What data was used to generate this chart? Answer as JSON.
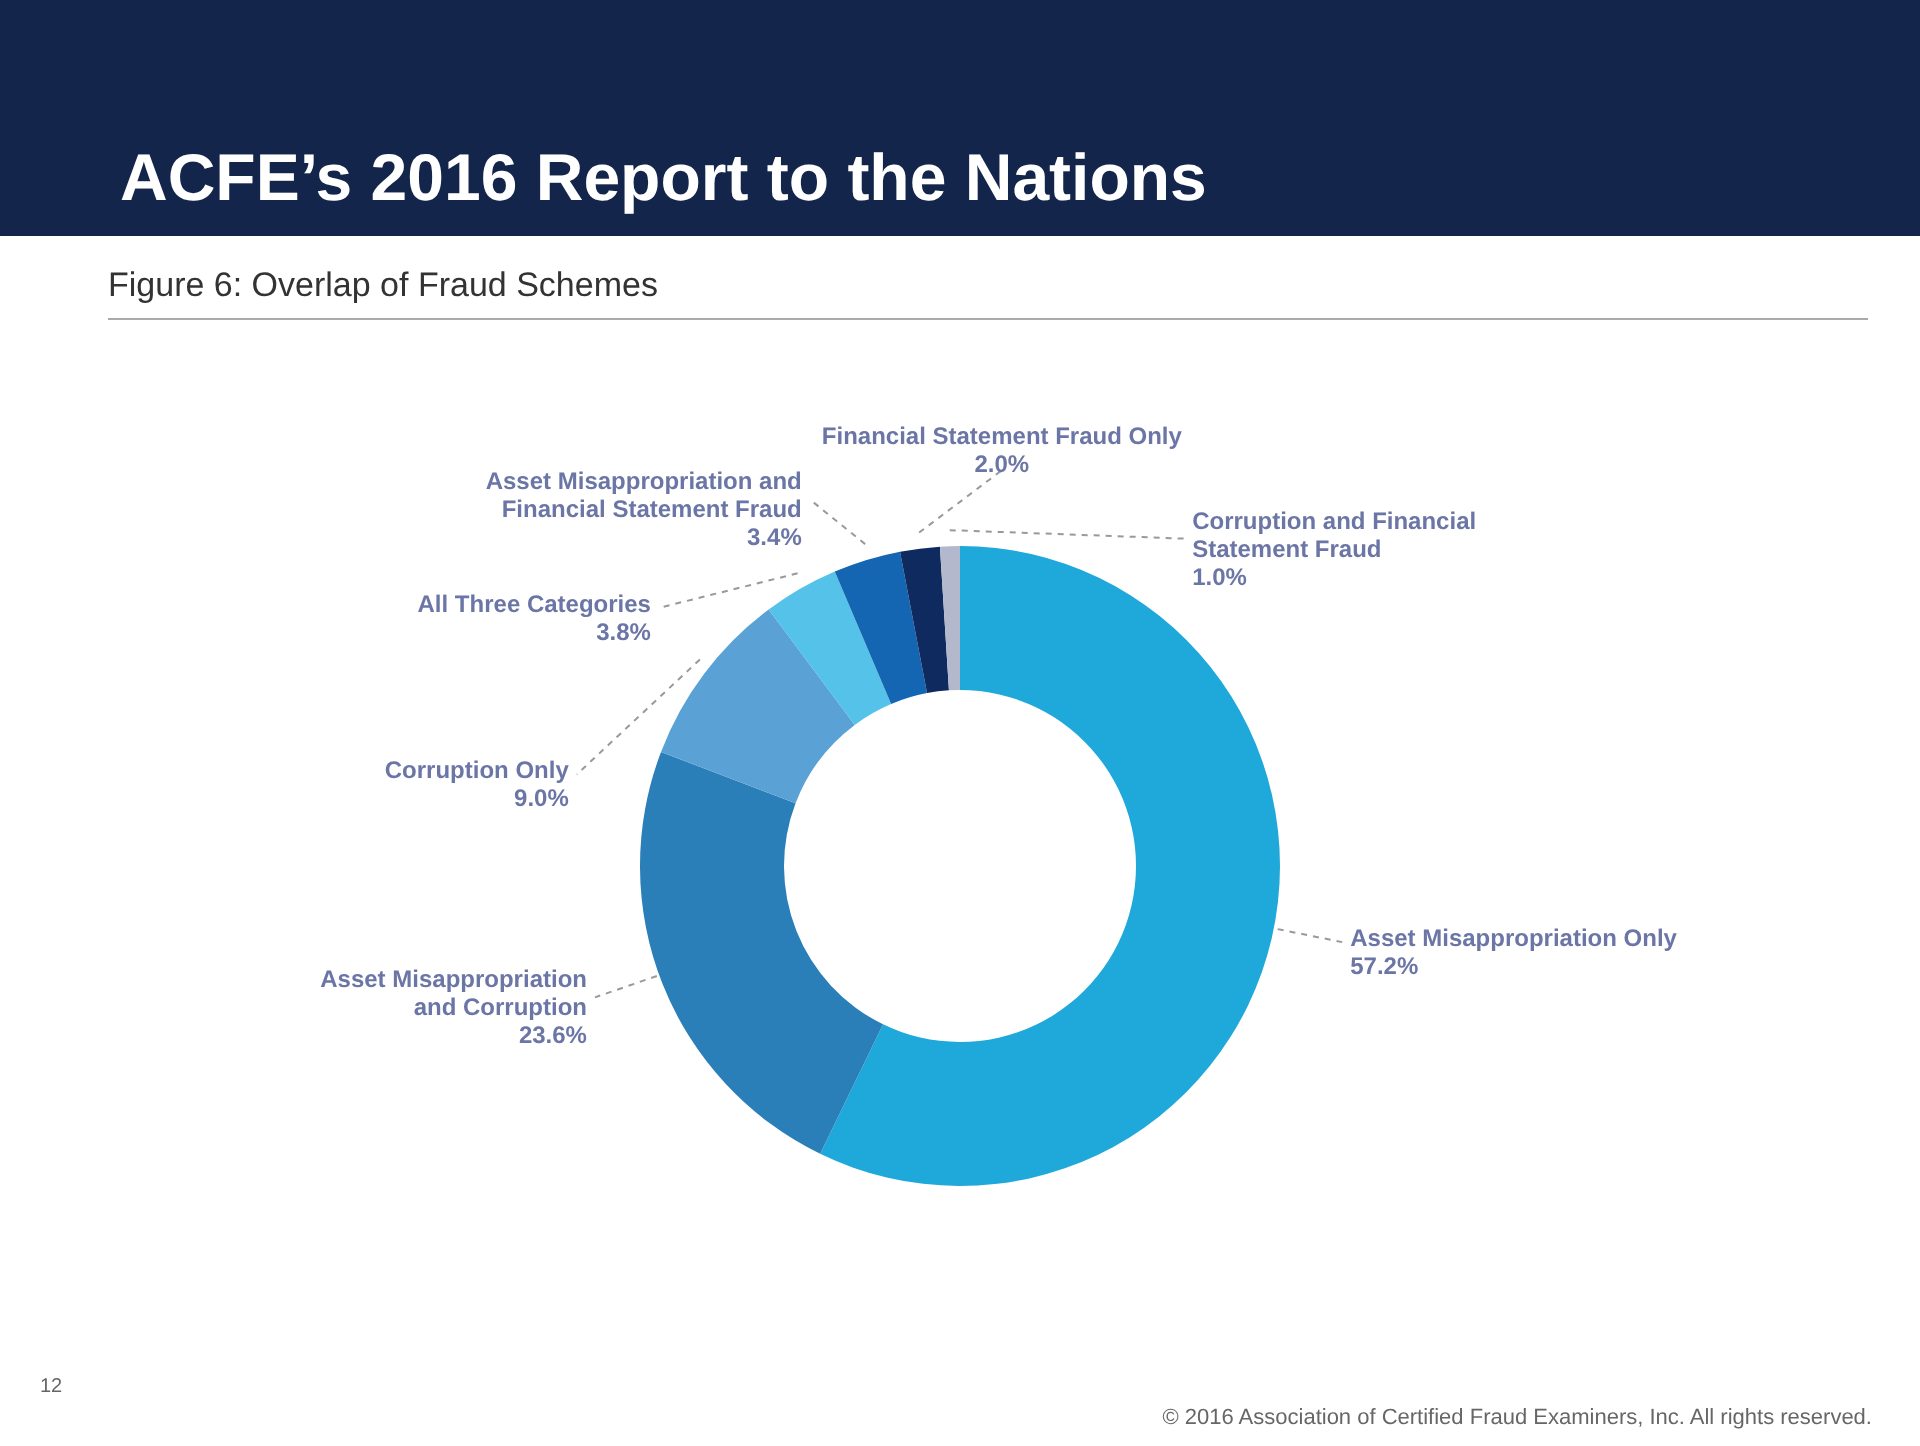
{
  "chart_data": {
    "type": "donut",
    "title": "ACFE’s 2016 Report to the Nations",
    "subtitle": "Figure 6: Overlap of Fraud Schemes",
    "categories": [
      "Asset Misappropriation Only",
      "Asset Misappropriation and Corruption",
      "Corruption Only",
      "All Three Categories",
      "Asset Misappropriation and Financial Statement Fraud",
      "Financial Statement Fraud Only",
      "Corruption and Financial Statement Fraud"
    ],
    "values": [
      57.2,
      23.6,
      9.0,
      3.8,
      3.4,
      2.0,
      1.0
    ],
    "colors": [
      "#1fa8da",
      "#2a7fb9",
      "#5aa2d6",
      "#55c2ea",
      "#1566b2",
      "#0e2a5e",
      "#b4b8cc"
    ],
    "value_labels": [
      "57.2%",
      "23.6%",
      "9.0%",
      "3.8%",
      "3.4%",
      "2.0%",
      "1.0%"
    ],
    "annotations": [
      "12",
      "© 2016 Association of Certified Fraud Examiners, Inc. All rights reserved."
    ]
  }
}
